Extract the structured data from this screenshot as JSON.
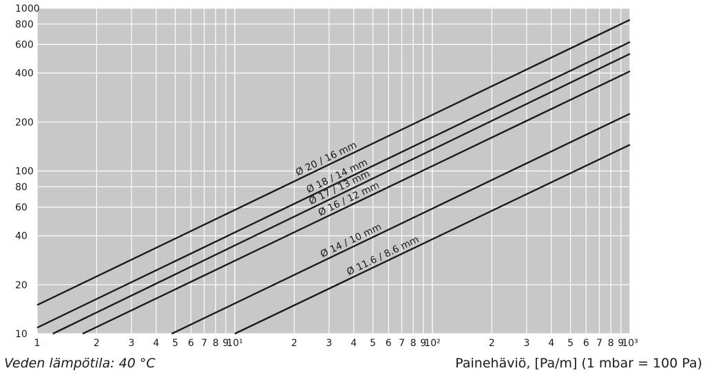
{
  "chart_data": {
    "type": "line",
    "xscale": "log",
    "yscale": "log",
    "xlim": [
      1,
      1000
    ],
    "ylim": [
      10,
      1000
    ],
    "grid": true,
    "background": "#c8c8c8",
    "grid_color": "#ffffff",
    "line_color": "#1a1a1a",
    "x_ticks": [
      {
        "value": 1,
        "label": "1"
      },
      {
        "value": 2,
        "label": "2"
      },
      {
        "value": 3,
        "label": "3"
      },
      {
        "value": 4,
        "label": "4"
      },
      {
        "value": 5,
        "label": "5"
      },
      {
        "value": 6,
        "label": "6"
      },
      {
        "value": 7,
        "label": "7"
      },
      {
        "value": 8,
        "label": "8"
      },
      {
        "value": 9,
        "label": "9"
      },
      {
        "value": 10,
        "label": "10¹"
      },
      {
        "value": 20,
        "label": "2"
      },
      {
        "value": 30,
        "label": "3"
      },
      {
        "value": 40,
        "label": "4"
      },
      {
        "value": 50,
        "label": "5"
      },
      {
        "value": 60,
        "label": "6"
      },
      {
        "value": 70,
        "label": "7"
      },
      {
        "value": 80,
        "label": "8"
      },
      {
        "value": 90,
        "label": "9"
      },
      {
        "value": 100,
        "label": "10²"
      },
      {
        "value": 200,
        "label": "2"
      },
      {
        "value": 300,
        "label": "3"
      },
      {
        "value": 400,
        "label": "4"
      },
      {
        "value": 500,
        "label": "5"
      },
      {
        "value": 600,
        "label": "6"
      },
      {
        "value": 700,
        "label": "7"
      },
      {
        "value": 800,
        "label": "8"
      },
      {
        "value": 900,
        "label": "9"
      },
      {
        "value": 1000,
        "label": "10³"
      }
    ],
    "y_ticks": [
      {
        "value": 10,
        "label": "10"
      },
      {
        "value": 20,
        "label": "20"
      },
      {
        "value": 40,
        "label": "40"
      },
      {
        "value": 60,
        "label": "60"
      },
      {
        "value": 80,
        "label": "80"
      },
      {
        "value": 100,
        "label": "100"
      },
      {
        "value": 200,
        "label": "200"
      },
      {
        "value": 400,
        "label": "400"
      },
      {
        "value": 600,
        "label": "600"
      },
      {
        "value": 800,
        "label": "800"
      },
      {
        "value": 1000,
        "label": "1000"
      }
    ],
    "series": [
      {
        "name": "Ø 20 / 16 mm",
        "x": [
          1,
          1000
        ],
        "y": [
          15,
          850
        ]
      },
      {
        "name": "Ø 18 / 14 mm",
        "x": [
          1,
          1000
        ],
        "y": [
          10.9,
          620
        ]
      },
      {
        "name": "Ø 17 / 13 mm",
        "x": [
          1.2,
          1000
        ],
        "y": [
          10,
          525
        ]
      },
      {
        "name": "Ø 16 / 12 mm",
        "x": [
          1.7,
          1000
        ],
        "y": [
          10,
          410
        ]
      },
      {
        "name": "Ø 14 / 10 mm",
        "x": [
          4.8,
          1000
        ],
        "y": [
          10,
          225
        ]
      },
      {
        "name": "Ø 11.6 / 8.6 mm",
        "x": [
          10,
          1000
        ],
        "y": [
          10,
          145
        ]
      }
    ],
    "label_at_x": [
      30,
      34,
      35,
      39,
      40,
      58
    ]
  },
  "footer": {
    "left": "Veden lämpötila: 40 °C",
    "right": "Painehäviö, [Pa/m] (1 mbar = 100 Pa)"
  }
}
